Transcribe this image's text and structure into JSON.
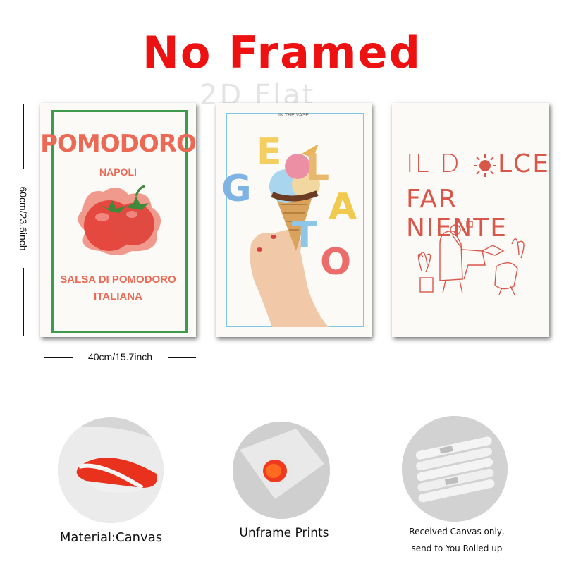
{
  "header": {
    "title": "No Framed",
    "watermark": "2D Flat"
  },
  "dimensions": {
    "height_label": "60cm/23.6inch",
    "width_label": "40cm/15.7inch"
  },
  "posters": {
    "pomodoro": {
      "title": "POMODORO",
      "subtitle": "NAPOLI",
      "tagline_line1": "SALSA DI POMODORO",
      "tagline_line2": "ITALIANA",
      "accent_color": "#ec6a55",
      "border_color": "#3f9a4c"
    },
    "gelato": {
      "small_text": "IN THE VASE",
      "letters": [
        "E",
        "L",
        "G",
        "L",
        "A",
        "T",
        "O"
      ],
      "letter_colors": [
        "#f4cf60",
        "#e7b86d",
        "#7fb3e3",
        "#ec6c6c",
        "#f1c94f",
        "#8ec6e8",
        "#ec6c6c"
      ],
      "border_color": "#7ec8e3"
    },
    "dolce": {
      "line1": "IL D",
      "line1_end": "LCE",
      "line2": "FAR NIENTE",
      "ink_color": "#d9574a"
    }
  },
  "features": [
    {
      "caption": "Material:Canvas"
    },
    {
      "caption": "Unframe  Prints"
    },
    {
      "caption_line1": "Received Canvas only,",
      "caption_line2": "send to You Rolled up"
    }
  ]
}
